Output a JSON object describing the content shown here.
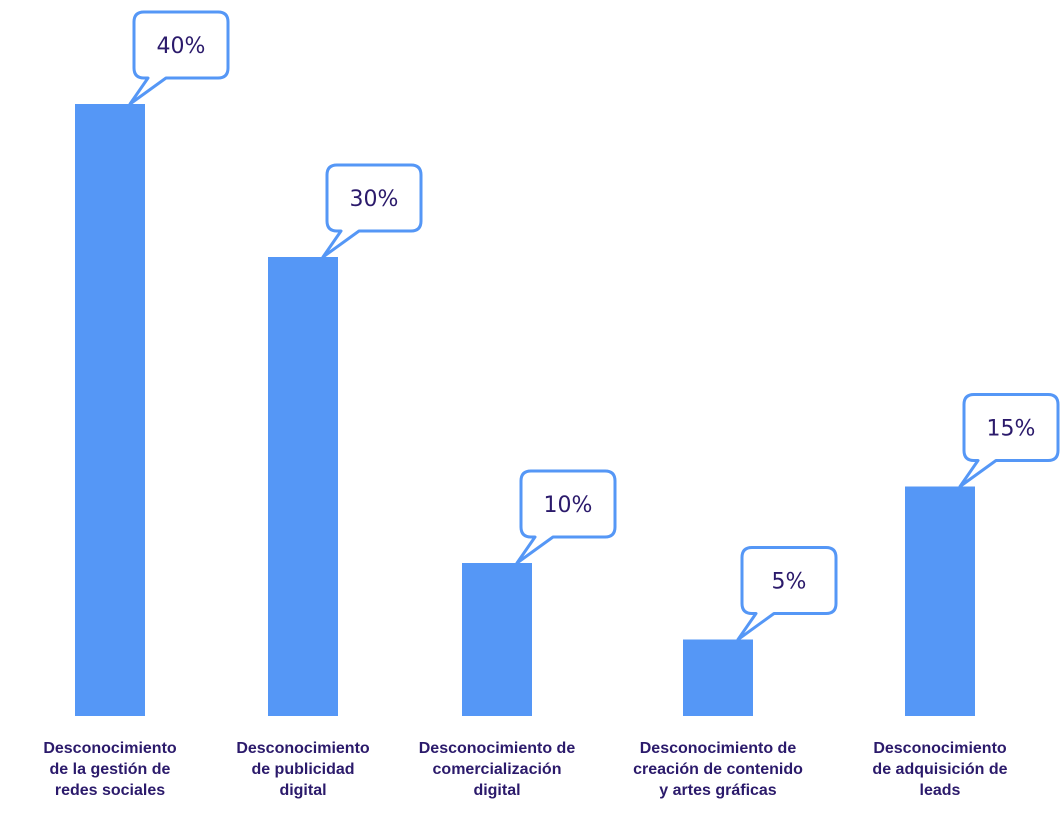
{
  "chart_data": {
    "type": "bar",
    "title": "",
    "xlabel": "",
    "ylabel": "",
    "ylim": [
      0,
      40
    ],
    "grid": false,
    "legend": "none",
    "categories": [
      "Desconocimiento\nde  la gestión de\nredes sociales",
      "Desconocimiento\nde publicidad\ndigital",
      "Desconocimiento de\ncomercialización\ndigital",
      "Desconocimiento de\ncreación de contenido\ny artes gráficas",
      "Desconocimiento\nde adquisición de\nleads"
    ],
    "values": [
      40,
      30,
      10,
      5,
      15
    ],
    "data_labels": [
      "40%",
      "30%",
      "10%",
      "5%",
      "15%"
    ],
    "colors": {
      "bar": "#5597f6",
      "callout_border": "#5597f6",
      "callout_fill": "#ffffff",
      "label_text": "#2b1a6b",
      "value_text": "#2b1a6b"
    }
  }
}
